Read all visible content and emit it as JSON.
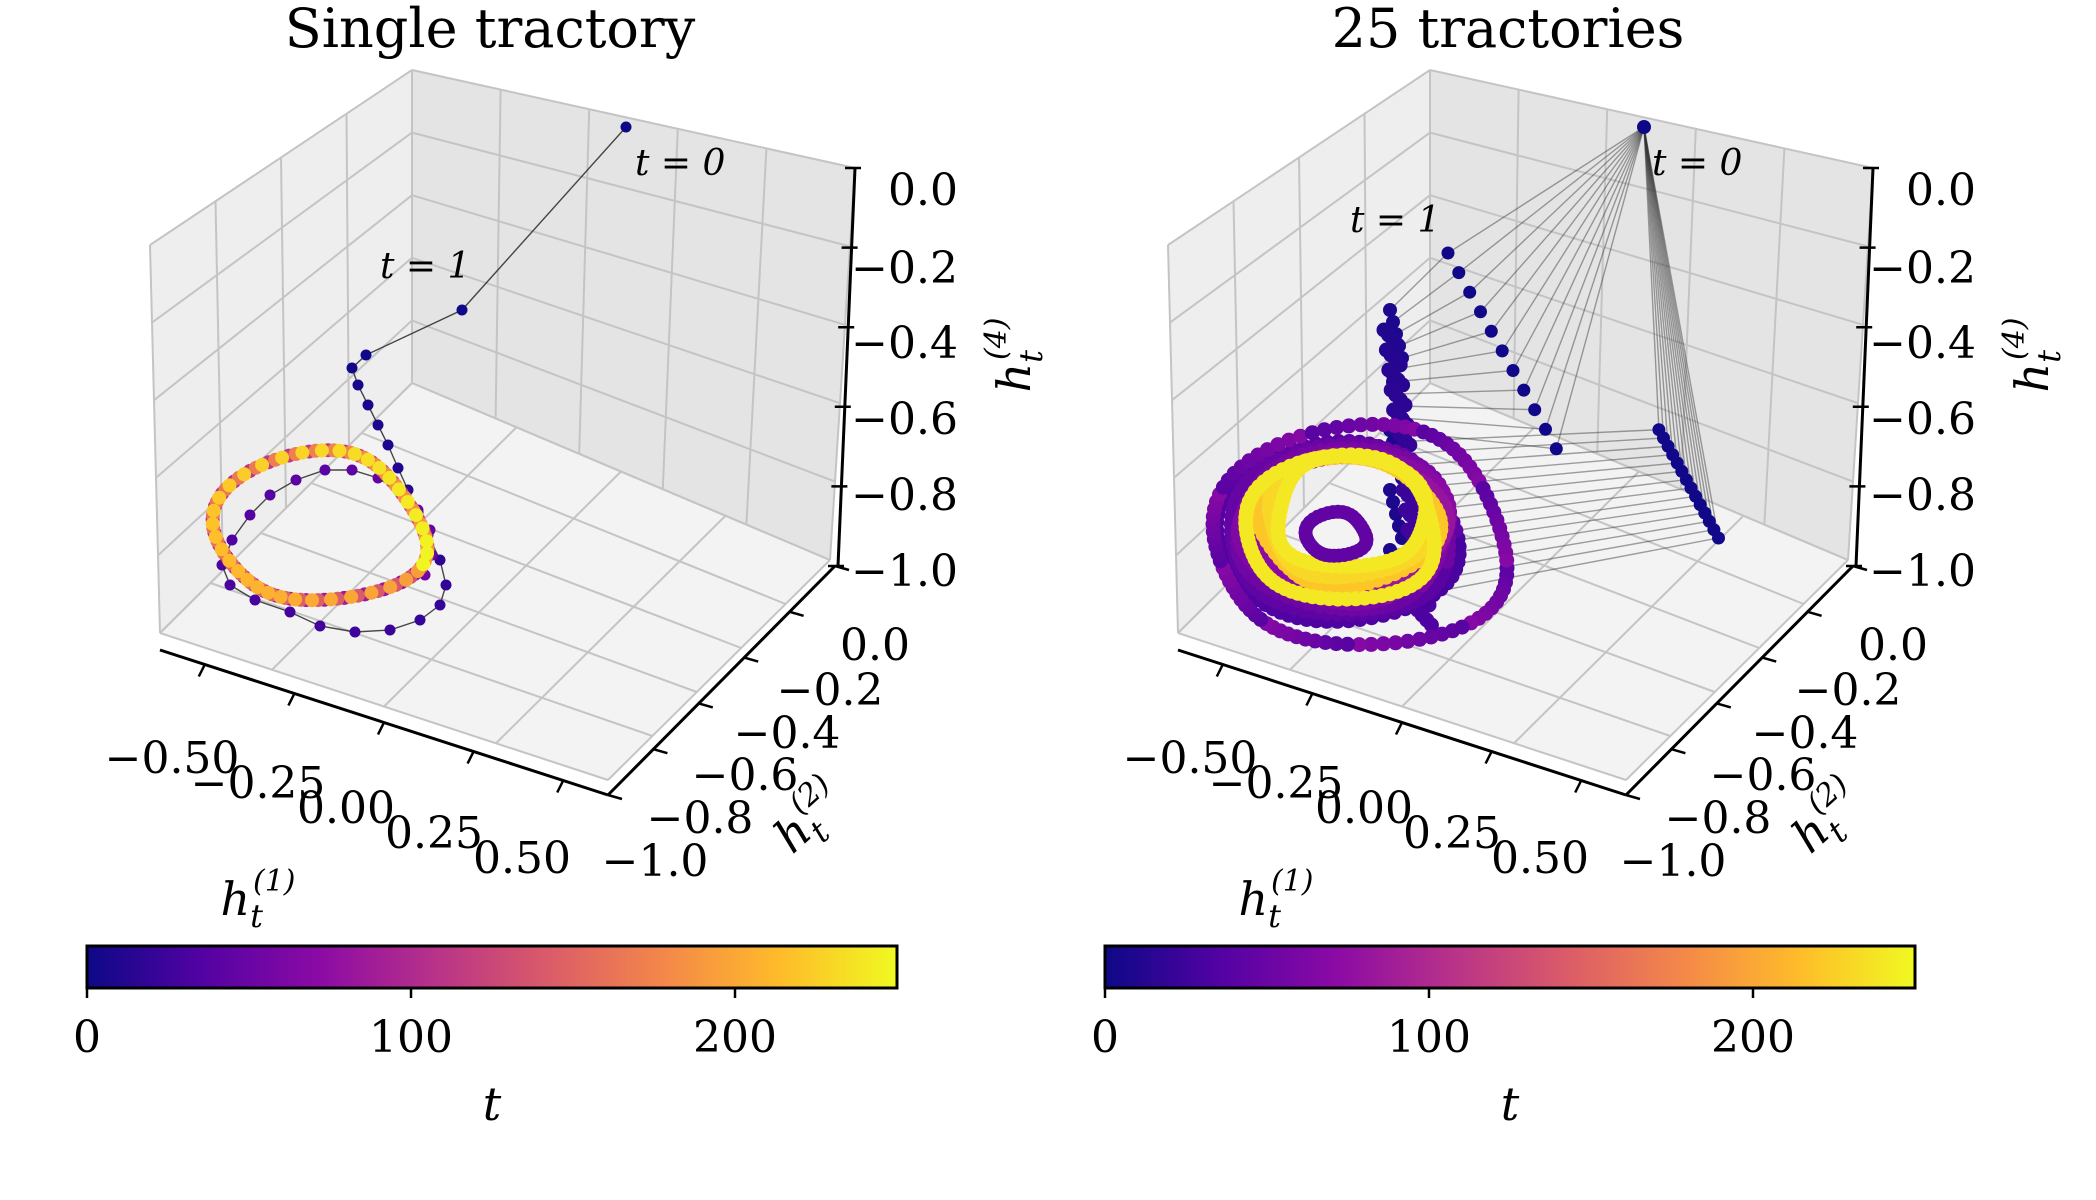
{
  "colors": {
    "pane_left": "#eeeeee",
    "pane_right": "#e4e4e4",
    "pane_floor": "#f3f3f3",
    "grid": "#c4c4c4",
    "connector": "#333333",
    "colormap": [
      "#0d0887",
      "#5302a3",
      "#8b0aa5",
      "#b83289",
      "#db5c68",
      "#f48849",
      "#febc2a",
      "#f0f921"
    ]
  },
  "chart_data": [
    {
      "type": "scatter3d",
      "title": "Single tractory",
      "xlabel": "h_t^{(1)}",
      "ylabel": "h_t^{(2)}",
      "zlabel": "h_t^{(4)}",
      "xlabel_parts": {
        "base": "h",
        "sub": "t",
        "sup": "(1)"
      },
      "ylabel_parts": {
        "base": "h",
        "sub": "t",
        "sup": "(2)"
      },
      "zlabel_parts": {
        "base": "h",
        "sub": "t",
        "sup": "(4)"
      },
      "x_ticks": [
        "−0.50",
        "−0.25",
        "0.00",
        "0.25",
        "0.50"
      ],
      "y_ticks": [
        "0.0",
        "−0.2",
        "−0.4",
        "−0.6",
        "−0.8",
        "−1.0"
      ],
      "z_ticks": [
        "0.0",
        "−0.2",
        "−0.4",
        "−0.6",
        "−0.8",
        "−1.0"
      ],
      "xlim": [
        -0.6,
        0.6
      ],
      "ylim": [
        -1.0,
        0.0
      ],
      "zlim": [
        -1.0,
        0.0
      ],
      "trajectories": 1,
      "annotations": [
        {
          "text": "t = 0",
          "t": 0
        },
        {
          "text": "t = 1",
          "t": 1
        }
      ],
      "colorbar": {
        "label": "t",
        "ticks": [
          "0",
          "100",
          "200"
        ],
        "range": [
          0,
          250
        ],
        "cmap": "plasma"
      }
    },
    {
      "type": "scatter3d",
      "title": "25 tractories",
      "xlabel": "h_t^{(1)}",
      "ylabel": "h_t^{(2)}",
      "zlabel": "h_t^{(4)}",
      "xlabel_parts": {
        "base": "h",
        "sub": "t",
        "sup": "(1)"
      },
      "ylabel_parts": {
        "base": "h",
        "sub": "t",
        "sup": "(2)"
      },
      "zlabel_parts": {
        "base": "h",
        "sub": "t",
        "sup": "(4)"
      },
      "x_ticks": [
        "−0.50",
        "−0.25",
        "0.00",
        "0.25",
        "0.50"
      ],
      "y_ticks": [
        "0.0",
        "−0.2",
        "−0.4",
        "−0.6",
        "−0.8",
        "−1.0"
      ],
      "z_ticks": [
        "0.0",
        "−0.2",
        "−0.4",
        "−0.6",
        "−0.8",
        "−1.0"
      ],
      "xlim": [
        -0.6,
        0.6
      ],
      "ylim": [
        -1.0,
        0.0
      ],
      "zlim": [
        -1.0,
        0.0
      ],
      "trajectories": 25,
      "annotations": [
        {
          "text": "t = 0",
          "t": 0
        },
        {
          "text": "t = 1",
          "t": 1
        }
      ],
      "colorbar": {
        "label": "t",
        "ticks": [
          "0",
          "100",
          "200"
        ],
        "range": [
          0,
          250
        ],
        "cmap": "plasma"
      }
    }
  ]
}
